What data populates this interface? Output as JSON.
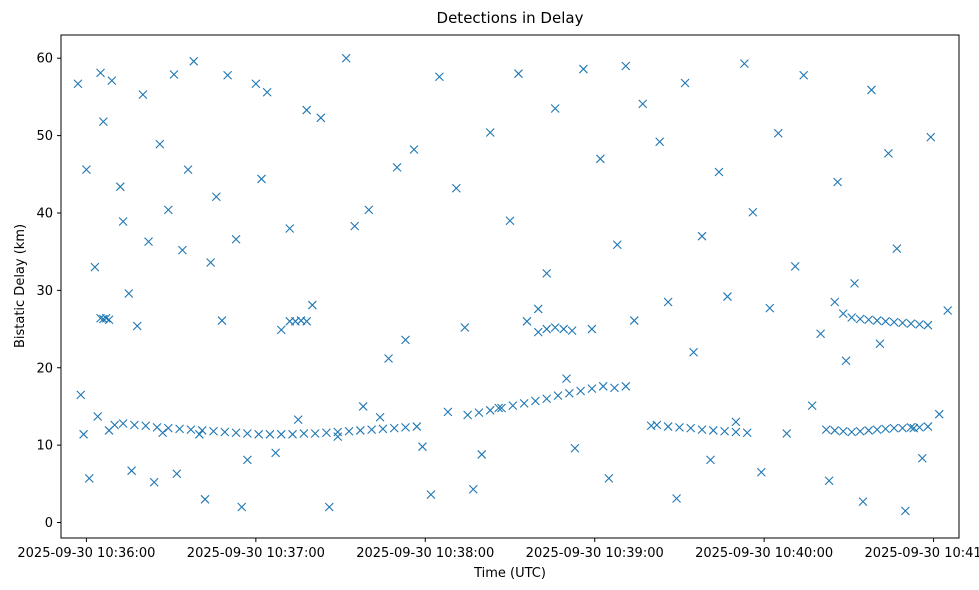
{
  "chart_data": {
    "type": "scatter",
    "title": "Detections in Delay",
    "xlabel": "Time (UTC)",
    "ylabel": "Bistatic Delay (km)",
    "x_unit": "UTC time",
    "xlim": [
      "2025-09-30 10:35:51",
      "2025-09-30 10:41:09"
    ],
    "ylim": [
      -2,
      63
    ],
    "xticks": [
      "2025-09-30 10:36:00",
      "2025-09-30 10:37:00",
      "2025-09-30 10:38:00",
      "2025-09-30 10:39:00",
      "2025-09-30 10:40:00",
      "2025-09-30 10:41:00"
    ],
    "yticks": [
      "0",
      "10",
      "20",
      "30",
      "40",
      "50",
      "60"
    ],
    "grid": false,
    "legend": "none",
    "marker": "x",
    "color": "#1f77b4",
    "series": [
      {
        "x": [
          "10:35:57",
          "10:35:58",
          "10:35:59",
          "10:36:00",
          "10:36:01",
          "10:36:03",
          "10:36:04",
          "10:36:05",
          "10:36:06",
          "10:36:08",
          "10:36:09",
          "10:36:10",
          "10:36:12",
          "10:36:13",
          "10:36:15",
          "10:36:16",
          "10:36:18",
          "10:36:20",
          "10:36:22",
          "10:36:24",
          "10:36:26",
          "10:36:27",
          "10:36:29",
          "10:36:31",
          "10:36:32",
          "10:36:34",
          "10:36:36",
          "10:36:38",
          "10:36:40",
          "10:36:42",
          "10:36:44",
          "10:36:46",
          "10:36:48",
          "10:36:50",
          "10:36:53",
          "10:36:55",
          "10:36:57",
          "10:37:00",
          "10:37:02",
          "10:37:04",
          "10:37:07",
          "10:37:09",
          "10:37:12",
          "10:37:15",
          "10:37:18",
          "10:37:20",
          "10:37:23",
          "10:37:26",
          "10:37:29",
          "10:37:32",
          "10:37:35",
          "10:37:38",
          "10:37:40",
          "10:37:44",
          "10:37:47",
          "10:37:50",
          "10:37:53",
          "10:37:56",
          "10:37:59",
          "10:38:02",
          "10:38:05",
          "10:38:08",
          "10:38:11",
          "10:38:14",
          "10:38:17",
          "10:38:20",
          "10:38:23",
          "10:38:26",
          "10:38:30",
          "10:38:33",
          "10:38:36",
          "10:38:40",
          "10:38:43",
          "10:38:46",
          "10:38:50",
          "10:38:53",
          "10:38:56",
          "10:38:59",
          "10:39:02",
          "10:39:05",
          "10:39:08",
          "10:39:11",
          "10:39:14",
          "10:39:17",
          "10:39:20",
          "10:39:23",
          "10:39:26",
          "10:39:29",
          "10:39:32",
          "10:39:35",
          "10:39:38",
          "10:39:41",
          "10:39:44",
          "10:39:47",
          "10:39:50",
          "10:39:53",
          "10:39:56",
          "10:39:59",
          "10:40:02",
          "10:40:05",
          "10:40:08",
          "10:40:11",
          "10:40:14",
          "10:40:17",
          "10:40:20",
          "10:40:23",
          "10:40:26",
          "10:40:29",
          "10:40:32",
          "10:40:35",
          "10:40:38",
          "10:40:41",
          "10:40:44",
          "10:40:47",
          "10:40:50",
          "10:40:53",
          "10:40:56",
          "10:40:59",
          "10:41:02",
          "10:41:05"
        ],
        "y": [
          56.7,
          16.5,
          11.4,
          45.6,
          5.7,
          33.0,
          13.7,
          58.1,
          51.8,
          11.9,
          57.1,
          12.6,
          43.4,
          38.9,
          29.6,
          6.7,
          25.4,
          55.3,
          36.3,
          5.2,
          48.9,
          11.6,
          40.4,
          57.9,
          6.3,
          35.2,
          45.6,
          59.6,
          11.4,
          3.0,
          33.6,
          42.1,
          26.1,
          57.8,
          36.6,
          2.0,
          8.1,
          56.7,
          44.4,
          55.6,
          9.0,
          24.9,
          38.0,
          13.3,
          53.3,
          28.1,
          52.3,
          2.0,
          11.1,
          60.0,
          38.3,
          15.0,
          40.4,
          13.6,
          21.2,
          45.9,
          23.6,
          48.2,
          9.8,
          3.6,
          57.6,
          14.3,
          43.2,
          25.2,
          4.3,
          8.8,
          50.4,
          14.8,
          39.0,
          58.0,
          26.0,
          27.6,
          32.2,
          53.5,
          18.6,
          9.6,
          58.6,
          25.0,
          47.0,
          5.7,
          35.9,
          59.0,
          26.1,
          54.1,
          12.5,
          49.2,
          28.5,
          3.1,
          56.8,
          22.0,
          37.0,
          8.1,
          45.3,
          29.2,
          13.0,
          59.3,
          40.1,
          6.5,
          27.7,
          50.3,
          11.5,
          33.1,
          57.8,
          15.1,
          24.4,
          5.4,
          44.0,
          20.9,
          30.9,
          2.7,
          55.9,
          23.1,
          47.7,
          35.4,
          1.5,
          12.2,
          8.3,
          49.8,
          14.0,
          27.4
        ]
      },
      {
        "x": [
          "10:36:05",
          "10:36:06",
          "10:36:07",
          "10:36:08"
        ],
        "y": [
          26.4,
          26.3,
          26.4,
          26.2
        ]
      },
      {
        "x": [
          "10:36:13",
          "10:36:17",
          "10:36:21",
          "10:36:25",
          "10:36:29",
          "10:36:33",
          "10:36:37",
          "10:36:41",
          "10:36:45",
          "10:36:49",
          "10:36:53",
          "10:36:57",
          "10:37:01",
          "10:37:05",
          "10:37:09",
          "10:37:13",
          "10:37:17",
          "10:37:21",
          "10:37:25",
          "10:37:29",
          "10:37:33",
          "10:37:37",
          "10:37:41",
          "10:37:45",
          "10:37:49",
          "10:37:53",
          "10:37:57"
        ],
        "y": [
          12.8,
          12.6,
          12.5,
          12.3,
          12.2,
          12.1,
          12.0,
          11.9,
          11.8,
          11.7,
          11.6,
          11.5,
          11.4,
          11.4,
          11.4,
          11.4,
          11.5,
          11.5,
          11.6,
          11.7,
          11.8,
          11.9,
          12.0,
          12.1,
          12.2,
          12.3,
          12.4
        ]
      },
      {
        "x": [
          "10:37:12",
          "10:37:14",
          "10:37:16",
          "10:37:18"
        ],
        "y": [
          26.0,
          26.0,
          26.1,
          26.0
        ]
      },
      {
        "x": [
          "10:38:15",
          "10:38:19",
          "10:38:23",
          "10:38:27",
          "10:38:31",
          "10:38:35",
          "10:38:39",
          "10:38:43",
          "10:38:47",
          "10:38:51",
          "10:38:55",
          "10:38:59",
          "10:39:03",
          "10:39:07",
          "10:39:11"
        ],
        "y": [
          13.9,
          14.2,
          14.5,
          14.8,
          15.1,
          15.4,
          15.7,
          16.0,
          16.4,
          16.7,
          17.0,
          17.3,
          17.6,
          17.4,
          17.6
        ]
      },
      {
        "x": [
          "10:38:40",
          "10:38:43",
          "10:38:46",
          "10:38:49",
          "10:38:52"
        ],
        "y": [
          24.6,
          25.0,
          25.2,
          25.0,
          24.8
        ]
      },
      {
        "x": [
          "10:39:22",
          "10:39:26",
          "10:39:30",
          "10:39:34",
          "10:39:38",
          "10:39:42",
          "10:39:46",
          "10:39:50",
          "10:39:54"
        ],
        "y": [
          12.6,
          12.4,
          12.3,
          12.2,
          12.0,
          11.9,
          11.8,
          11.7,
          11.6
        ]
      },
      {
        "x": [
          "10:40:22",
          "10:40:25",
          "10:40:28",
          "10:40:31",
          "10:40:34",
          "10:40:37",
          "10:40:40",
          "10:40:43",
          "10:40:46",
          "10:40:49",
          "10:40:52",
          "10:40:55",
          "10:40:58"
        ],
        "y": [
          12.0,
          11.9,
          11.8,
          11.7,
          11.8,
          11.9,
          12.0,
          12.1,
          12.2,
          12.2,
          12.3,
          12.3,
          12.4
        ]
      },
      {
        "x": [
          "10:40:25",
          "10:40:28",
          "10:40:31",
          "10:40:34",
          "10:40:37",
          "10:40:40",
          "10:40:43",
          "10:40:46",
          "10:40:49",
          "10:40:52",
          "10:40:55",
          "10:40:58"
        ],
        "y": [
          28.5,
          27.0,
          26.5,
          26.3,
          26.2,
          26.1,
          26.0,
          25.9,
          25.8,
          25.7,
          25.6,
          25.5
        ]
      }
    ]
  }
}
